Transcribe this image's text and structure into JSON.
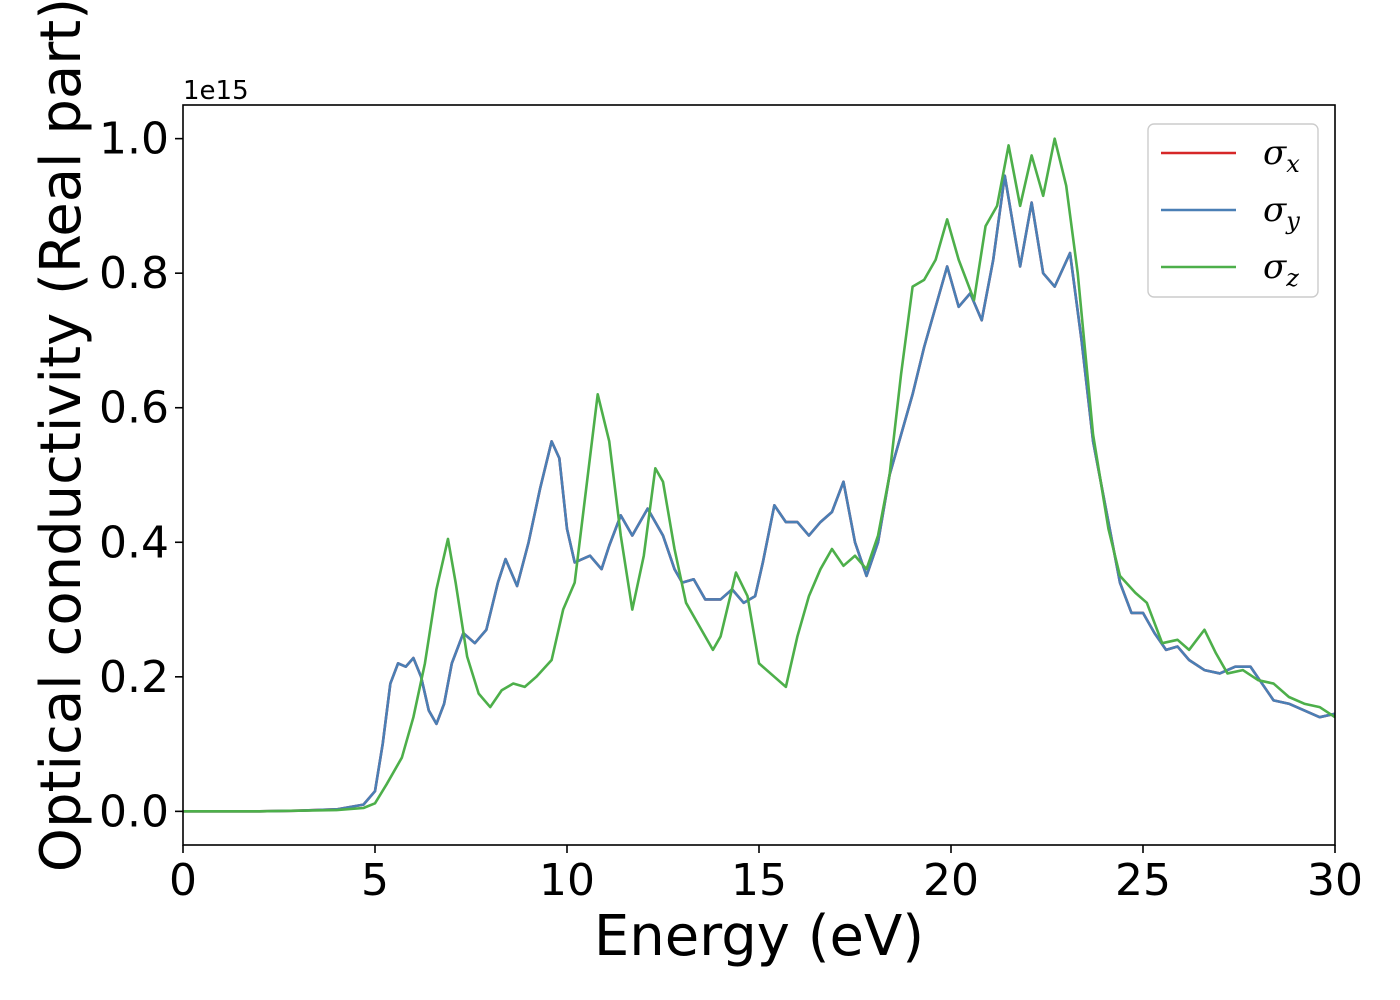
{
  "chart_data": {
    "type": "line",
    "xlabel": "Energy (eV)",
    "ylabel": "Optical conductivity (Real part)",
    "y_offset_label": "1e15",
    "xlim": [
      0,
      30
    ],
    "ylim": [
      -0.05,
      1.05
    ],
    "xticks": [
      0,
      5,
      10,
      15,
      20,
      25,
      30
    ],
    "xtick_labels": [
      "0",
      "5",
      "10",
      "15",
      "20",
      "25",
      "30"
    ],
    "yticks": [
      0.0,
      0.2,
      0.4,
      0.6,
      0.8,
      1.0
    ],
    "ytick_labels": [
      "0.0",
      "0.2",
      "0.4",
      "0.6",
      "0.8",
      "1.0"
    ],
    "grid": false,
    "legend_position": "top-right",
    "colors": {
      "sigma_x": "#d62728",
      "sigma_y": "#4a7fb5",
      "sigma_z": "#4daf4a"
    },
    "series": [
      {
        "key": "sigma_x",
        "name": "σx",
        "name_base": "σ",
        "name_sub": "x",
        "color": "#d62728",
        "points": [
          [
            0,
            0
          ],
          [
            2,
            0.0
          ],
          [
            3,
            0.001
          ],
          [
            4,
            0.003
          ],
          [
            4.7,
            0.01
          ],
          [
            5.0,
            0.03
          ],
          [
            5.2,
            0.1
          ],
          [
            5.4,
            0.19
          ],
          [
            5.6,
            0.22
          ],
          [
            5.8,
            0.215
          ],
          [
            6.0,
            0.228
          ],
          [
            6.2,
            0.2
          ],
          [
            6.4,
            0.15
          ],
          [
            6.6,
            0.13
          ],
          [
            6.8,
            0.16
          ],
          [
            7.0,
            0.22
          ],
          [
            7.3,
            0.265
          ],
          [
            7.6,
            0.25
          ],
          [
            7.9,
            0.27
          ],
          [
            8.2,
            0.34
          ],
          [
            8.4,
            0.375
          ],
          [
            8.7,
            0.335
          ],
          [
            9.0,
            0.4
          ],
          [
            9.3,
            0.48
          ],
          [
            9.6,
            0.55
          ],
          [
            9.8,
            0.525
          ],
          [
            10.0,
            0.42
          ],
          [
            10.2,
            0.37
          ],
          [
            10.6,
            0.38
          ],
          [
            10.9,
            0.36
          ],
          [
            11.1,
            0.395
          ],
          [
            11.4,
            0.44
          ],
          [
            11.7,
            0.41
          ],
          [
            12.1,
            0.45
          ],
          [
            12.5,
            0.41
          ],
          [
            12.8,
            0.36
          ],
          [
            13.0,
            0.34
          ],
          [
            13.3,
            0.345
          ],
          [
            13.6,
            0.315
          ],
          [
            14.0,
            0.315
          ],
          [
            14.3,
            0.33
          ],
          [
            14.6,
            0.31
          ],
          [
            14.9,
            0.32
          ],
          [
            15.1,
            0.37
          ],
          [
            15.4,
            0.455
          ],
          [
            15.7,
            0.43
          ],
          [
            16.0,
            0.43
          ],
          [
            16.3,
            0.41
          ],
          [
            16.6,
            0.43
          ],
          [
            16.9,
            0.445
          ],
          [
            17.2,
            0.49
          ],
          [
            17.5,
            0.4
          ],
          [
            17.8,
            0.35
          ],
          [
            18.1,
            0.4
          ],
          [
            18.4,
            0.5
          ],
          [
            18.7,
            0.56
          ],
          [
            19.0,
            0.62
          ],
          [
            19.3,
            0.69
          ],
          [
            19.6,
            0.75
          ],
          [
            19.9,
            0.81
          ],
          [
            20.2,
            0.75
          ],
          [
            20.5,
            0.77
          ],
          [
            20.8,
            0.73
          ],
          [
            21.1,
            0.82
          ],
          [
            21.4,
            0.945
          ],
          [
            21.8,
            0.81
          ],
          [
            22.1,
            0.905
          ],
          [
            22.4,
            0.8
          ],
          [
            22.7,
            0.78
          ],
          [
            23.1,
            0.83
          ],
          [
            23.4,
            0.7
          ],
          [
            23.7,
            0.55
          ],
          [
            24.1,
            0.43
          ],
          [
            24.4,
            0.34
          ],
          [
            24.7,
            0.295
          ],
          [
            25.0,
            0.295
          ],
          [
            25.3,
            0.265
          ],
          [
            25.6,
            0.24
          ],
          [
            25.9,
            0.245
          ],
          [
            26.2,
            0.225
          ],
          [
            26.6,
            0.21
          ],
          [
            27.0,
            0.205
          ],
          [
            27.4,
            0.215
          ],
          [
            27.8,
            0.215
          ],
          [
            28.1,
            0.19
          ],
          [
            28.4,
            0.165
          ],
          [
            28.8,
            0.16
          ],
          [
            29.2,
            0.15
          ],
          [
            29.6,
            0.14
          ],
          [
            30.0,
            0.145
          ]
        ]
      },
      {
        "key": "sigma_y",
        "name": "σy",
        "name_base": "σ",
        "name_sub": "y",
        "color": "#4a7fb5",
        "points": [
          [
            0,
            0
          ],
          [
            2,
            0.0
          ],
          [
            3,
            0.001
          ],
          [
            4,
            0.003
          ],
          [
            4.7,
            0.01
          ],
          [
            5.0,
            0.03
          ],
          [
            5.2,
            0.1
          ],
          [
            5.4,
            0.19
          ],
          [
            5.6,
            0.22
          ],
          [
            5.8,
            0.215
          ],
          [
            6.0,
            0.228
          ],
          [
            6.2,
            0.2
          ],
          [
            6.4,
            0.15
          ],
          [
            6.6,
            0.13
          ],
          [
            6.8,
            0.16
          ],
          [
            7.0,
            0.22
          ],
          [
            7.3,
            0.265
          ],
          [
            7.6,
            0.25
          ],
          [
            7.9,
            0.27
          ],
          [
            8.2,
            0.34
          ],
          [
            8.4,
            0.375
          ],
          [
            8.7,
            0.335
          ],
          [
            9.0,
            0.4
          ],
          [
            9.3,
            0.48
          ],
          [
            9.6,
            0.55
          ],
          [
            9.8,
            0.525
          ],
          [
            10.0,
            0.42
          ],
          [
            10.2,
            0.37
          ],
          [
            10.6,
            0.38
          ],
          [
            10.9,
            0.36
          ],
          [
            11.1,
            0.395
          ],
          [
            11.4,
            0.44
          ],
          [
            11.7,
            0.41
          ],
          [
            12.1,
            0.45
          ],
          [
            12.5,
            0.41
          ],
          [
            12.8,
            0.36
          ],
          [
            13.0,
            0.34
          ],
          [
            13.3,
            0.345
          ],
          [
            13.6,
            0.315
          ],
          [
            14.0,
            0.315
          ],
          [
            14.3,
            0.33
          ],
          [
            14.6,
            0.31
          ],
          [
            14.9,
            0.32
          ],
          [
            15.1,
            0.37
          ],
          [
            15.4,
            0.455
          ],
          [
            15.7,
            0.43
          ],
          [
            16.0,
            0.43
          ],
          [
            16.3,
            0.41
          ],
          [
            16.6,
            0.43
          ],
          [
            16.9,
            0.445
          ],
          [
            17.2,
            0.49
          ],
          [
            17.5,
            0.4
          ],
          [
            17.8,
            0.35
          ],
          [
            18.1,
            0.4
          ],
          [
            18.4,
            0.5
          ],
          [
            18.7,
            0.56
          ],
          [
            19.0,
            0.62
          ],
          [
            19.3,
            0.69
          ],
          [
            19.6,
            0.75
          ],
          [
            19.9,
            0.81
          ],
          [
            20.2,
            0.75
          ],
          [
            20.5,
            0.77
          ],
          [
            20.8,
            0.73
          ],
          [
            21.1,
            0.82
          ],
          [
            21.4,
            0.945
          ],
          [
            21.8,
            0.81
          ],
          [
            22.1,
            0.905
          ],
          [
            22.4,
            0.8
          ],
          [
            22.7,
            0.78
          ],
          [
            23.1,
            0.83
          ],
          [
            23.4,
            0.7
          ],
          [
            23.7,
            0.55
          ],
          [
            24.1,
            0.43
          ],
          [
            24.4,
            0.34
          ],
          [
            24.7,
            0.295
          ],
          [
            25.0,
            0.295
          ],
          [
            25.3,
            0.265
          ],
          [
            25.6,
            0.24
          ],
          [
            25.9,
            0.245
          ],
          [
            26.2,
            0.225
          ],
          [
            26.6,
            0.21
          ],
          [
            27.0,
            0.205
          ],
          [
            27.4,
            0.215
          ],
          [
            27.8,
            0.215
          ],
          [
            28.1,
            0.19
          ],
          [
            28.4,
            0.165
          ],
          [
            28.8,
            0.16
          ],
          [
            29.2,
            0.15
          ],
          [
            29.6,
            0.14
          ],
          [
            30.0,
            0.145
          ]
        ]
      },
      {
        "key": "sigma_z",
        "name": "σz",
        "name_base": "σ",
        "name_sub": "z",
        "color": "#4daf4a",
        "points": [
          [
            0,
            0
          ],
          [
            2,
            0.0
          ],
          [
            3,
            0.001
          ],
          [
            4,
            0.002
          ],
          [
            4.7,
            0.005
          ],
          [
            5.0,
            0.012
          ],
          [
            5.3,
            0.04
          ],
          [
            5.7,
            0.08
          ],
          [
            6.0,
            0.14
          ],
          [
            6.3,
            0.22
          ],
          [
            6.6,
            0.33
          ],
          [
            6.9,
            0.405
          ],
          [
            7.1,
            0.34
          ],
          [
            7.4,
            0.23
          ],
          [
            7.7,
            0.175
          ],
          [
            8.0,
            0.155
          ],
          [
            8.3,
            0.18
          ],
          [
            8.6,
            0.19
          ],
          [
            8.9,
            0.185
          ],
          [
            9.2,
            0.2
          ],
          [
            9.6,
            0.225
          ],
          [
            9.9,
            0.3
          ],
          [
            10.2,
            0.34
          ],
          [
            10.5,
            0.48
          ],
          [
            10.8,
            0.62
          ],
          [
            11.1,
            0.55
          ],
          [
            11.4,
            0.41
          ],
          [
            11.7,
            0.3
          ],
          [
            12.0,
            0.38
          ],
          [
            12.3,
            0.51
          ],
          [
            12.5,
            0.49
          ],
          [
            12.8,
            0.39
          ],
          [
            13.1,
            0.31
          ],
          [
            13.5,
            0.27
          ],
          [
            13.8,
            0.24
          ],
          [
            14.0,
            0.26
          ],
          [
            14.4,
            0.355
          ],
          [
            14.7,
            0.32
          ],
          [
            15.0,
            0.22
          ],
          [
            15.4,
            0.2
          ],
          [
            15.7,
            0.185
          ],
          [
            16.0,
            0.26
          ],
          [
            16.3,
            0.32
          ],
          [
            16.6,
            0.36
          ],
          [
            16.9,
            0.39
          ],
          [
            17.2,
            0.365
          ],
          [
            17.5,
            0.38
          ],
          [
            17.8,
            0.36
          ],
          [
            18.1,
            0.41
          ],
          [
            18.4,
            0.5
          ],
          [
            18.7,
            0.65
          ],
          [
            19.0,
            0.78
          ],
          [
            19.3,
            0.79
          ],
          [
            19.6,
            0.82
          ],
          [
            19.9,
            0.88
          ],
          [
            20.2,
            0.82
          ],
          [
            20.6,
            0.76
          ],
          [
            20.9,
            0.87
          ],
          [
            21.2,
            0.9
          ],
          [
            21.5,
            0.99
          ],
          [
            21.8,
            0.9
          ],
          [
            22.1,
            0.975
          ],
          [
            22.4,
            0.915
          ],
          [
            22.7,
            1.0
          ],
          [
            23.0,
            0.93
          ],
          [
            23.3,
            0.8
          ],
          [
            23.7,
            0.56
          ],
          [
            24.1,
            0.42
          ],
          [
            24.4,
            0.35
          ],
          [
            24.8,
            0.325
          ],
          [
            25.1,
            0.31
          ],
          [
            25.5,
            0.25
          ],
          [
            25.9,
            0.255
          ],
          [
            26.2,
            0.24
          ],
          [
            26.6,
            0.27
          ],
          [
            26.9,
            0.235
          ],
          [
            27.2,
            0.205
          ],
          [
            27.6,
            0.21
          ],
          [
            28.0,
            0.195
          ],
          [
            28.4,
            0.19
          ],
          [
            28.8,
            0.17
          ],
          [
            29.2,
            0.16
          ],
          [
            29.6,
            0.155
          ],
          [
            30.0,
            0.14
          ]
        ]
      }
    ]
  }
}
